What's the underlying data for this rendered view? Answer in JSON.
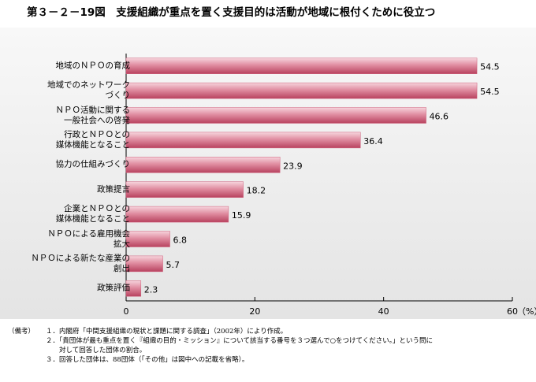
{
  "chart_data": {
    "type": "barh",
    "title": "第３－２－19図　支援組織が重点を置く支援目的は活動が地域に根付くために役立つ",
    "categories": [
      "地域のＮＰＯの育成",
      "地域でのネットワーク\nづくり",
      "ＮＰＯ活動に関する\n一般社会への啓発",
      "行政とＮＰＯとの\n媒体機能となること",
      "協力の仕組みづくり",
      "政策提言",
      "企業とＮＰＯとの\n媒体機能となること",
      "ＮＰＯによる雇用機会\n拡大",
      "ＮＰＯによる新たな産業の\n創出",
      "政策評価"
    ],
    "values": [
      54.5,
      54.5,
      46.6,
      36.4,
      23.9,
      18.2,
      15.9,
      6.8,
      5.7,
      2.3
    ],
    "color": "#d0607c",
    "xlim": [
      0,
      60
    ],
    "xticks": [
      0,
      20,
      40,
      60
    ],
    "x_unit": "（%）",
    "notes_label": "（備考）",
    "notes": [
      "１．内閣府「中間支援組織の現状と課題に関する調査」（2002年）により作成。",
      "２．「貴団体が最も重点を置く『組織の目的・ミッション』について該当する番号を３つ選んで○をつけてください。」という問に\n　　対して回答した団体の割合。",
      "３．回答した団体は、88団体（「その他」は図中への記載を省略）。"
    ]
  }
}
